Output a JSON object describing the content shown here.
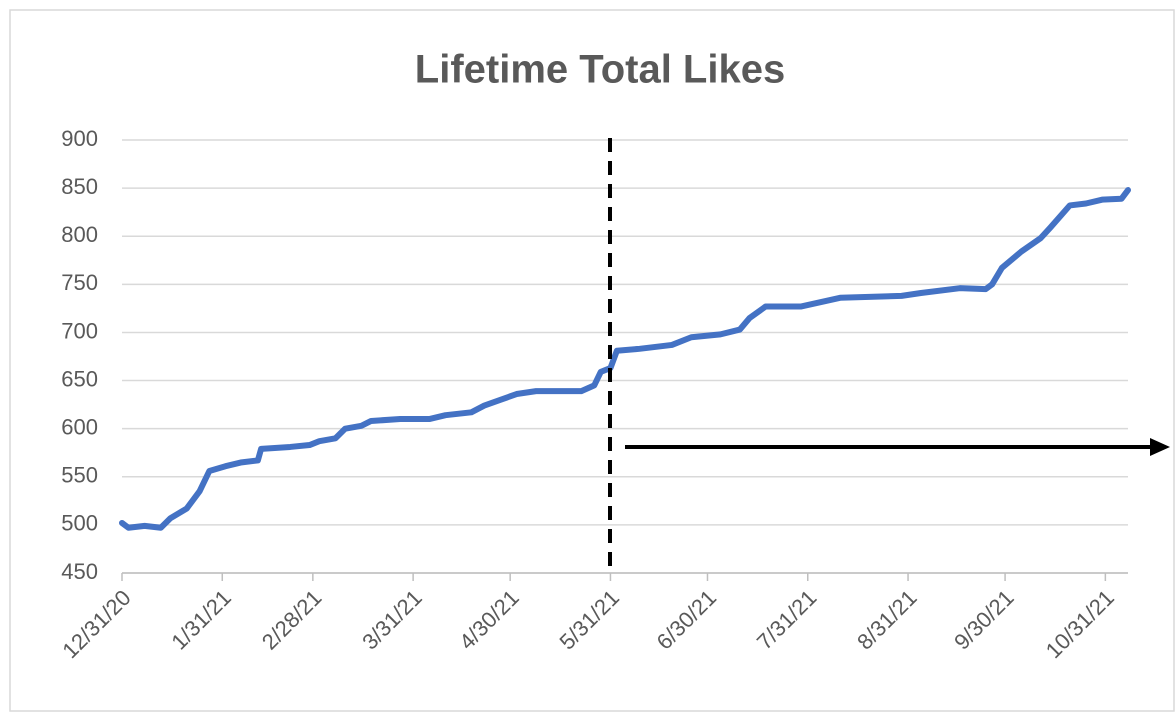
{
  "chart_data": {
    "type": "line",
    "title": "Lifetime Total Likes",
    "x": [
      "12/31/20",
      "1/2/21",
      "1/7/21",
      "1/12/21",
      "1/15/21",
      "1/20/21",
      "1/24/21",
      "1/27/21",
      "2/1/21",
      "2/6/21",
      "2/11/21",
      "2/12/21",
      "2/21/21",
      "2/27/21",
      "3/2/21",
      "3/7/21",
      "3/10/21",
      "3/15/21",
      "3/18/21",
      "3/27/21",
      "4/5/21",
      "4/10/21",
      "4/18/21",
      "4/22/21",
      "4/27/21",
      "5/2/21",
      "5/8/21",
      "5/22/21",
      "5/26/21",
      "5/28/21",
      "5/31/21",
      "6/2/21",
      "6/9/21",
      "6/19/21",
      "6/25/21",
      "7/4/21",
      "7/10/21",
      "7/13/21",
      "7/18/21",
      "7/29/21",
      "8/10/21",
      "8/29/21",
      "9/4/21",
      "9/16/21",
      "9/24/21",
      "9/26/21",
      "9/29/21",
      "10/5/21",
      "10/11/21",
      "10/14/21",
      "10/20/21",
      "10/25/21",
      "10/30/21",
      "11/5/21",
      "11/7/21"
    ],
    "series": [
      {
        "name": "Lifetime Total Likes",
        "color": "#4472c4",
        "values": [
          502,
          497,
          499,
          497,
          507,
          517,
          535,
          556,
          561,
          565,
          567,
          579,
          581,
          583,
          587,
          590,
          600,
          603,
          608,
          610,
          610,
          614,
          617,
          624,
          630,
          636,
          639,
          639,
          645,
          659,
          663,
          681,
          683,
          687,
          695,
          698,
          703,
          715,
          727,
          727,
          736,
          738,
          741,
          746,
          745,
          750,
          767,
          784,
          798,
          809,
          832,
          834,
          838,
          839,
          848
        ]
      }
    ],
    "xlim": [
      "12/31/20",
      "11/7/21"
    ],
    "xticks": [
      "12/31/20",
      "1/31/21",
      "2/28/21",
      "3/31/21",
      "4/30/21",
      "5/31/21",
      "6/30/21",
      "7/31/21",
      "8/31/21",
      "9/30/21",
      "10/31/21"
    ],
    "ylim": [
      450,
      900
    ],
    "yticks": [
      450,
      500,
      550,
      600,
      650,
      700,
      750,
      800,
      850,
      900
    ],
    "grid": true
  }
}
